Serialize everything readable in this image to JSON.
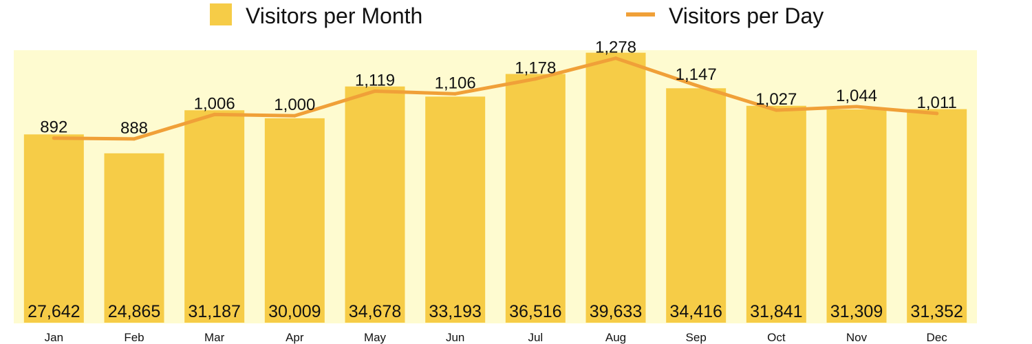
{
  "chart_data": {
    "type": "bar",
    "categories": [
      "Jan",
      "Feb",
      "Mar",
      "Apr",
      "May",
      "Jun",
      "Jul",
      "Aug",
      "Sep",
      "Oct",
      "Nov",
      "Dec"
    ],
    "series": [
      {
        "name": "Visitors per Month",
        "type": "bar",
        "values": [
          27642,
          24865,
          31187,
          30009,
          34678,
          33193,
          36516,
          39633,
          34416,
          31841,
          31309,
          31352
        ],
        "labels": [
          "27,642",
          "24,865",
          "31,187",
          "30,009",
          "34,678",
          "33,193",
          "36,516",
          "39,633",
          "34,416",
          "31,841",
          "31,309",
          "31,352"
        ],
        "color": "#F6CC47",
        "axis": "left"
      },
      {
        "name": "Visitors per Day",
        "type": "line",
        "values": [
          892,
          888,
          1006,
          1000,
          1119,
          1106,
          1178,
          1278,
          1147,
          1027,
          1044,
          1011
        ],
        "labels": [
          "892",
          "888",
          "1,006",
          "1,000",
          "1,119",
          "1,106",
          "1,178",
          "1,278",
          "1,147",
          "1,027",
          "1,044",
          "1,011"
        ],
        "color": "#F0A038",
        "axis": "right"
      }
    ],
    "ylim": [
      0,
      40000
    ],
    "y2lim": [
      0,
      1300
    ],
    "plot_background": "#FEFBD0",
    "legend": "top",
    "grid": false,
    "title": "",
    "xlabel": "",
    "ylabel": ""
  }
}
